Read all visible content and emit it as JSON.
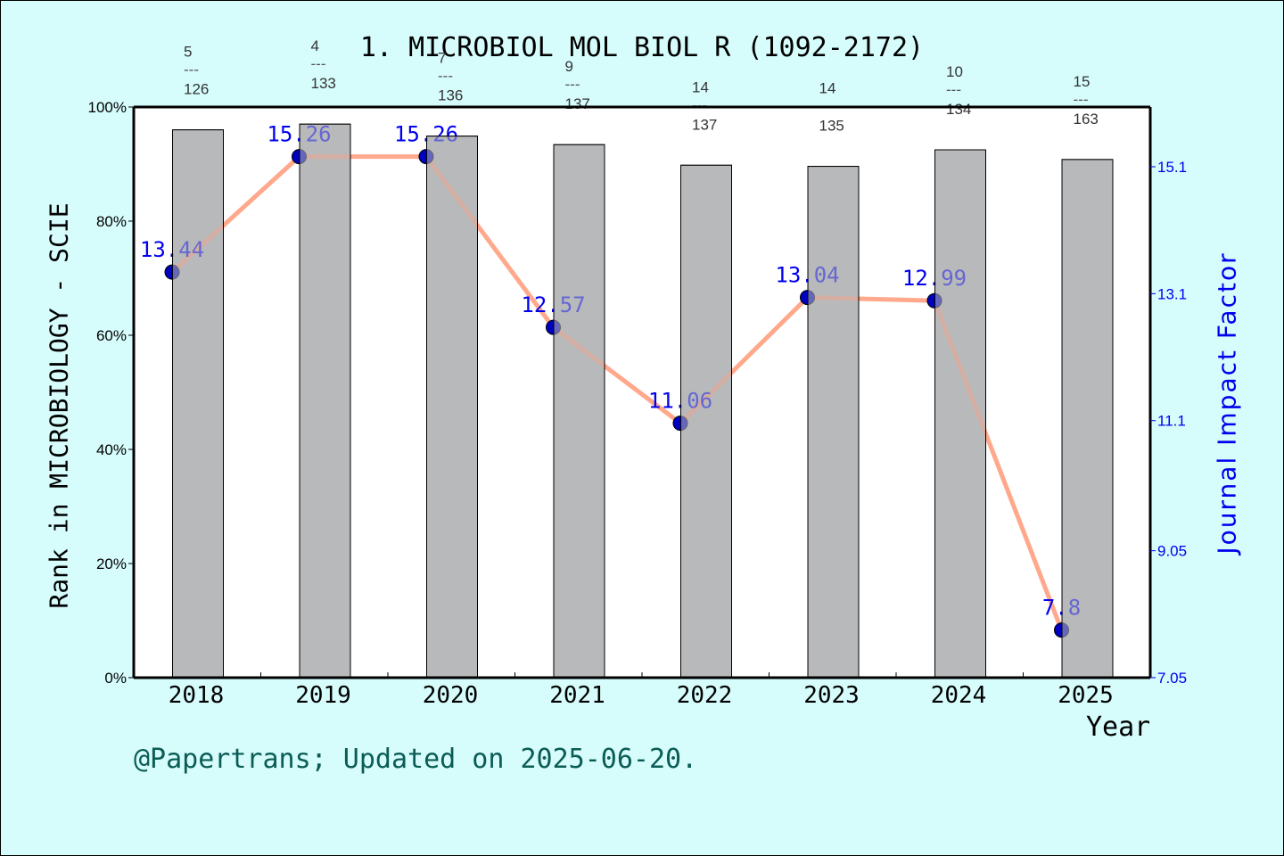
{
  "title": "1. MICROBIOL MOL BIOL R (1092-2172)",
  "footer": "@Papertrans; Updated on 2025-06-20.",
  "axes": {
    "left_label": "Rank in MICROBIOLOGY - SCIE",
    "right_label": "Journal Impact Factor",
    "x_label": "Year",
    "left_ticks": [
      "0%",
      "20%",
      "40%",
      "60%",
      "80%",
      "100%"
    ],
    "right_ticks": [
      "7.05",
      "9.05",
      "11.1",
      "13.1",
      "15.1"
    ]
  },
  "colors": {
    "background": "#d6fcfc",
    "plot_bg": "#ffffff",
    "bar": "#b8b9bb",
    "line": "#ff9f7f",
    "marker": "#0000c0",
    "jif_label": "#0000ee",
    "footer": "#0a5c55"
  },
  "chart_data": {
    "type": "bar+line",
    "title": "1. MICROBIOL MOL BIOL R (1092-2172)",
    "xlabel": "Year",
    "ylabel": "Rank in MICROBIOLOGY - SCIE",
    "y2label": "Journal Impact Factor",
    "categories": [
      "2018",
      "2019",
      "2020",
      "2021",
      "2022",
      "2023",
      "2024",
      "2025"
    ],
    "ylim": [
      0,
      100
    ],
    "y2lim": [
      7.05,
      16.04
    ],
    "grid": false,
    "series": [
      {
        "name": "Rank percentile",
        "type": "bar",
        "axis": "left",
        "values": [
          96.0,
          97.0,
          94.9,
          93.4,
          89.8,
          89.6,
          92.5,
          90.8
        ],
        "rank_labels": [
          {
            "rank": "5",
            "total": "126"
          },
          {
            "rank": "4",
            "total": "133"
          },
          {
            "rank": "7",
            "total": "136"
          },
          {
            "rank": "9",
            "total": "137"
          },
          {
            "rank": "14",
            "total": "137"
          },
          {
            "rank": "14",
            "total": "135"
          },
          {
            "rank": "10",
            "total": "134"
          },
          {
            "rank": "15",
            "total": "163"
          }
        ]
      },
      {
        "name": "Journal Impact Factor",
        "type": "line",
        "axis": "right",
        "values": [
          13.44,
          15.26,
          15.26,
          12.57,
          11.06,
          13.04,
          12.99,
          7.8
        ],
        "labels": [
          "13.44",
          "15.26",
          "15.26",
          "12.57",
          "11.06",
          "13.04",
          "12.99",
          "7.8"
        ]
      }
    ]
  }
}
